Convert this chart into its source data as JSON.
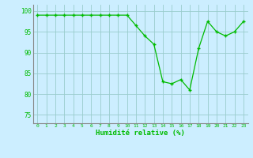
{
  "x": [
    0,
    1,
    2,
    3,
    4,
    5,
    6,
    7,
    8,
    9,
    10,
    11,
    12,
    13,
    14,
    15,
    16,
    17,
    18,
    19,
    20,
    21,
    22,
    23
  ],
  "y": [
    99,
    99,
    99,
    99,
    99,
    99,
    99,
    99,
    99,
    99,
    99,
    96.5,
    94,
    92,
    83,
    82.5,
    83.5,
    81,
    91,
    97.5,
    95,
    94,
    95,
    97.5
  ],
  "line_color": "#00bb00",
  "marker_color": "#00bb00",
  "bg_color": "#cceeff",
  "grid_color": "#99cccc",
  "xlabel": "Humidité relative (%)",
  "tick_color": "#00bb00",
  "yticks": [
    75,
    80,
    85,
    90,
    95,
    100
  ],
  "xticks": [
    0,
    1,
    2,
    3,
    4,
    5,
    6,
    7,
    8,
    9,
    10,
    11,
    12,
    13,
    14,
    15,
    16,
    17,
    18,
    19,
    20,
    21,
    22,
    23
  ],
  "ylim": [
    73,
    101.5
  ],
  "xlim": [
    -0.5,
    23.5
  ]
}
